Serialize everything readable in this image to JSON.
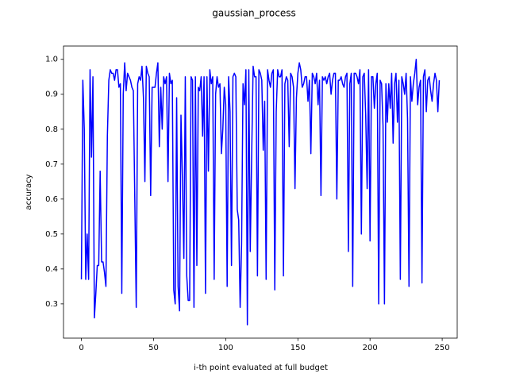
{
  "chart_data": {
    "type": "line",
    "title": "gaussian_process",
    "x_label": "i-th point evaluated at full budget",
    "y_label": "accuracy",
    "color": "#0000ff",
    "values": [
      0.37,
      0.94,
      0.8,
      0.37,
      0.5,
      0.37,
      0.97,
      0.72,
      0.95,
      0.26,
      0.33,
      0.41,
      0.41,
      0.68,
      0.42,
      0.42,
      0.39,
      0.35,
      0.78,
      0.94,
      0.97,
      0.96,
      0.96,
      0.94,
      0.97,
      0.97,
      0.92,
      0.93,
      0.33,
      0.9,
      0.99,
      0.91,
      0.96,
      0.95,
      0.94,
      0.92,
      0.91,
      0.6,
      0.29,
      0.93,
      0.95,
      0.94,
      0.98,
      0.89,
      0.65,
      0.98,
      0.96,
      0.95,
      0.61,
      0.92,
      0.92,
      0.92,
      0.96,
      0.99,
      0.75,
      0.92,
      0.8,
      0.95,
      0.93,
      0.95,
      0.65,
      0.96,
      0.93,
      0.94,
      0.34,
      0.3,
      0.89,
      0.35,
      0.28,
      0.84,
      0.66,
      0.43,
      0.95,
      0.38,
      0.31,
      0.31,
      0.95,
      0.94,
      0.29,
      0.95,
      0.41,
      0.92,
      0.91,
      0.95,
      0.78,
      0.95,
      0.33,
      0.95,
      0.68,
      0.97,
      0.93,
      0.95,
      0.37,
      0.9,
      0.95,
      0.92,
      0.93,
      0.73,
      0.8,
      0.92,
      0.87,
      0.35,
      0.95,
      0.85,
      0.41,
      0.95,
      0.96,
      0.95,
      0.57,
      0.54,
      0.29,
      0.47,
      0.93,
      0.87,
      0.97,
      0.24,
      0.97,
      0.45,
      0.73,
      0.98,
      0.95,
      0.95,
      0.38,
      0.97,
      0.96,
      0.94,
      0.74,
      0.88,
      0.37,
      0.97,
      0.94,
      0.92,
      0.96,
      0.97,
      0.34,
      0.85,
      0.97,
      0.95,
      0.95,
      0.97,
      0.38,
      0.93,
      0.95,
      0.94,
      0.75,
      0.96,
      0.95,
      0.92,
      0.63,
      0.89,
      0.96,
      0.99,
      0.97,
      0.92,
      0.93,
      0.95,
      0.95,
      0.88,
      0.94,
      0.73,
      0.96,
      0.95,
      0.93,
      0.96,
      0.87,
      0.94,
      0.61,
      0.95,
      0.94,
      0.95,
      0.93,
      0.95,
      0.96,
      0.9,
      0.94,
      0.96,
      0.96,
      0.6,
      0.94,
      0.94,
      0.95,
      0.93,
      0.92,
      0.95,
      0.96,
      0.45,
      0.93,
      0.96,
      0.35,
      0.96,
      0.96,
      0.95,
      0.93,
      0.97,
      0.5,
      0.95,
      0.96,
      0.84,
      0.63,
      0.97,
      0.48,
      0.95,
      0.95,
      0.86,
      0.93,
      0.96,
      0.3,
      0.94,
      0.93,
      0.81,
      0.3,
      0.93,
      0.82,
      0.93,
      0.86,
      0.96,
      0.76,
      0.93,
      0.96,
      0.82,
      0.94,
      0.37,
      0.95,
      0.93,
      0.9,
      0.96,
      0.83,
      0.35,
      0.95,
      0.88,
      0.93,
      0.96,
      1.0,
      0.87,
      0.92,
      0.94,
      0.36,
      0.95,
      0.97,
      0.85,
      0.94,
      0.95,
      0.91,
      0.88,
      0.93,
      0.96,
      0.94,
      0.85,
      0.94
    ],
    "xlim": [
      -12.4,
      260.4
    ],
    "xticks": [
      0,
      50,
      100,
      150,
      200,
      250
    ],
    "ylim": [
      0.202,
      1.038
    ],
    "yticks": [
      0.3,
      0.4,
      0.5,
      0.6,
      0.7,
      0.8,
      0.9,
      {
        "value": 1.0,
        "label": "1.0"
      }
    ]
  }
}
